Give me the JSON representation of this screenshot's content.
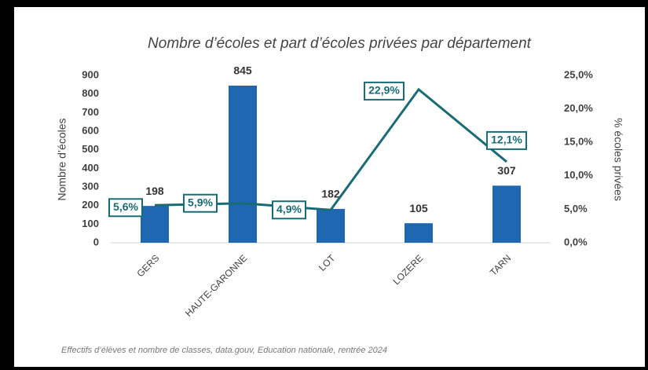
{
  "chart_data": {
    "type": "bar",
    "title": "Nombre d’écoles et part d’écoles privées par département",
    "ylabel": "Nombre d’écoles",
    "y2label": "% écoles privées",
    "source": "Effectifs d’élèves et nombre de classes, data.gouv, Education nationale, rentrée 2024",
    "categories": [
      "GERS",
      "HAUTE-GARONNE",
      "LOT",
      "LOZERE",
      "TARN"
    ],
    "series": [
      {
        "name": "Nombre d’écoles",
        "type": "bar",
        "color": "#1f67b1",
        "values": [
          198,
          845,
          182,
          105,
          307
        ]
      },
      {
        "name": "% écoles privées",
        "type": "line",
        "axis": "y2",
        "color": "#1a6b74",
        "values": [
          5.6,
          5.9,
          4.9,
          22.9,
          12.1
        ],
        "value_labels": [
          "5,6%",
          "5,9%",
          "4,9%",
          "22,9%",
          "12,1%"
        ]
      }
    ],
    "ylim": [
      0,
      900
    ],
    "yticks": [
      0,
      100,
      200,
      300,
      400,
      500,
      600,
      700,
      800,
      900
    ],
    "y2lim": [
      0,
      25
    ],
    "y2ticks": [
      {
        "value": 0,
        "label": "0,0%"
      },
      {
        "value": 5,
        "label": "5,0%"
      },
      {
        "value": 10,
        "label": "10,0%"
      },
      {
        "value": 15,
        "label": "15,0%"
      },
      {
        "value": 20,
        "label": "20,0%"
      },
      {
        "value": 25,
        "label": "25,0%"
      }
    ],
    "grid": false
  }
}
